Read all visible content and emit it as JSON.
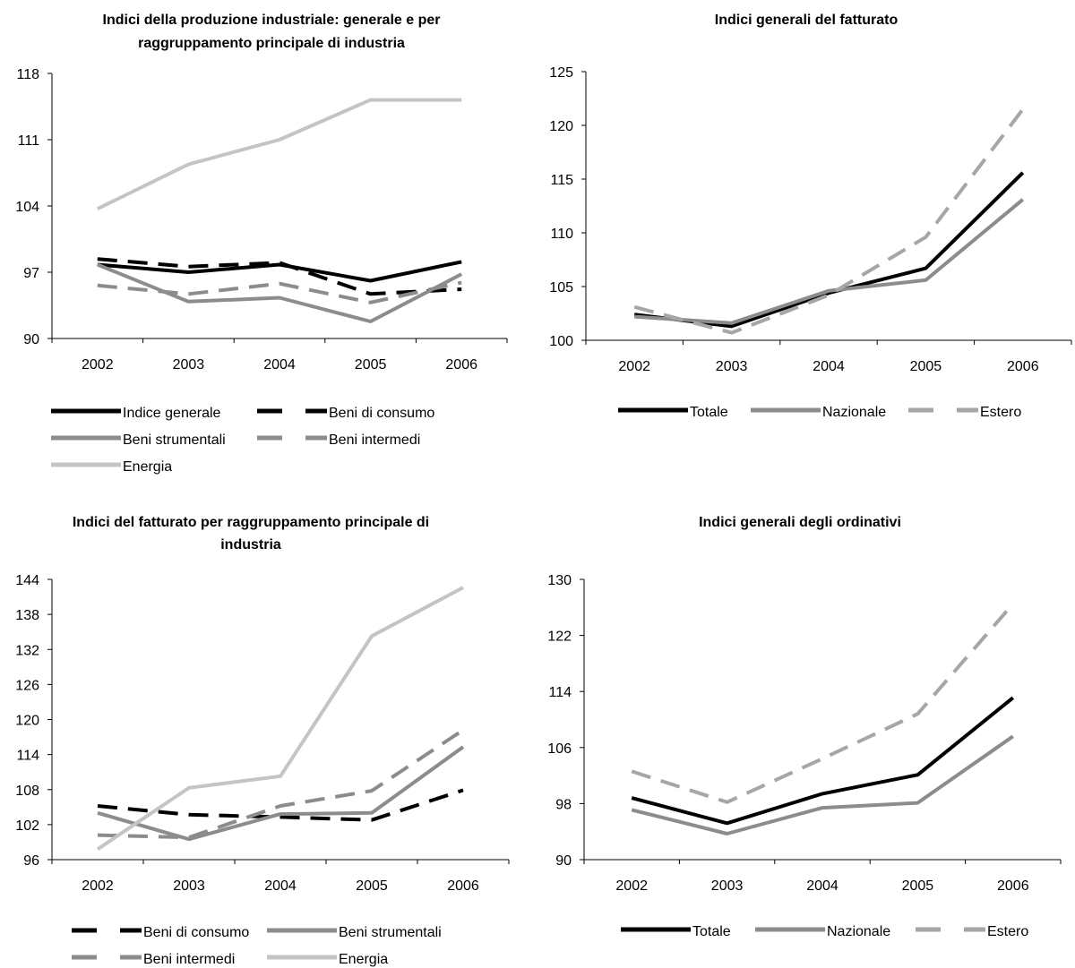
{
  "chart_data": [
    {
      "type": "line",
      "title": [
        "Indici della produzione industriale: generale e per",
        "raggruppamento principale di industria"
      ],
      "categories": [
        "2002",
        "2003",
        "2004",
        "2005",
        "2006"
      ],
      "ylim": [
        90,
        118
      ],
      "yticks": [
        90,
        97,
        104,
        111,
        118
      ],
      "legend_rows": [
        [
          0,
          1
        ],
        [
          2,
          3
        ],
        [
          4
        ]
      ],
      "series": [
        {
          "name": "Indice generale",
          "values": [
            97.8,
            97.0,
            97.8,
            96.1,
            98.1
          ],
          "color": "#000000",
          "dash": "solid"
        },
        {
          "name": "Beni di consumo",
          "values": [
            98.4,
            97.6,
            98.0,
            94.7,
            95.2
          ],
          "color": "#000000",
          "dash": "dashed"
        },
        {
          "name": "Beni strumentali",
          "values": [
            97.8,
            93.9,
            94.3,
            91.8,
            96.8
          ],
          "color": "#8c8c8c",
          "dash": "solid"
        },
        {
          "name": "Beni intermedi",
          "values": [
            95.6,
            94.7,
            95.8,
            93.8,
            95.9
          ],
          "color": "#8c8c8c",
          "dash": "dashed"
        },
        {
          "name": "Energia",
          "values": [
            103.7,
            108.4,
            111.0,
            115.2,
            115.2
          ],
          "color": "#c4c4c4",
          "dash": "solid"
        }
      ]
    },
    {
      "type": "line",
      "title": [
        "Indici generali del fatturato"
      ],
      "categories": [
        "2002",
        "2003",
        "2004",
        "2005",
        "2006"
      ],
      "ylim": [
        100,
        125
      ],
      "yticks": [
        100,
        105,
        110,
        115,
        120,
        125
      ],
      "legend_rows": [
        [
          0,
          1,
          2
        ]
      ],
      "series": [
        {
          "name": "Totale",
          "values": [
            102.4,
            101.3,
            104.4,
            106.7,
            115.6
          ],
          "color": "#000000",
          "dash": "solid"
        },
        {
          "name": "Nazionale",
          "values": [
            102.2,
            101.6,
            104.6,
            105.6,
            113.1
          ],
          "color": "#8c8c8c",
          "dash": "solid"
        },
        {
          "name": "Estero",
          "values": [
            103.1,
            100.7,
            104.2,
            109.6,
            121.5
          ],
          "color": "#a6a6a6",
          "dash": "dashed"
        }
      ]
    },
    {
      "type": "line",
      "title": [
        "Indici del fatturato per raggruppamento principale di",
        "industria"
      ],
      "categories": [
        "2002",
        "2003",
        "2004",
        "2005",
        "2006"
      ],
      "ylim": [
        96,
        144
      ],
      "yticks": [
        96,
        102,
        108,
        114,
        120,
        126,
        132,
        138,
        144
      ],
      "legend_rows": [
        [
          0,
          1
        ],
        [
          2,
          3
        ]
      ],
      "series": [
        {
          "name": "Beni di consumo",
          "values": [
            105.2,
            103.7,
            103.3,
            102.8,
            107.9
          ],
          "color": "#000000",
          "dash": "dashed"
        },
        {
          "name": "Beni strumentali",
          "values": [
            104.0,
            99.5,
            103.8,
            104.0,
            115.3
          ],
          "color": "#8c8c8c",
          "dash": "solid"
        },
        {
          "name": "Beni intermedi",
          "values": [
            100.2,
            99.8,
            105.2,
            107.8,
            118.2
          ],
          "color": "#8c8c8c",
          "dash": "dashed"
        },
        {
          "name": "Energia",
          "values": [
            97.8,
            108.3,
            110.3,
            134.3,
            142.6
          ],
          "color": "#c4c4c4",
          "dash": "solid"
        }
      ]
    },
    {
      "type": "line",
      "title": [
        "Indici generali degli ordinativi"
      ],
      "categories": [
        "2002",
        "2003",
        "2004",
        "2005",
        "2006"
      ],
      "ylim": [
        90,
        130
      ],
      "yticks": [
        90,
        98,
        106,
        114,
        122,
        130
      ],
      "legend_rows": [
        [
          0,
          1,
          2
        ]
      ],
      "series": [
        {
          "name": "Totale",
          "values": [
            98.8,
            95.2,
            99.4,
            102.1,
            113.1
          ],
          "color": "#000000",
          "dash": "solid"
        },
        {
          "name": "Nazionale",
          "values": [
            97.1,
            93.7,
            97.4,
            98.1,
            107.6
          ],
          "color": "#8c8c8c",
          "dash": "solid"
        },
        {
          "name": "Estero",
          "values": [
            102.6,
            98.2,
            104.4,
            110.8,
            126.5
          ],
          "color": "#a6a6a6",
          "dash": "dashed"
        }
      ]
    }
  ]
}
